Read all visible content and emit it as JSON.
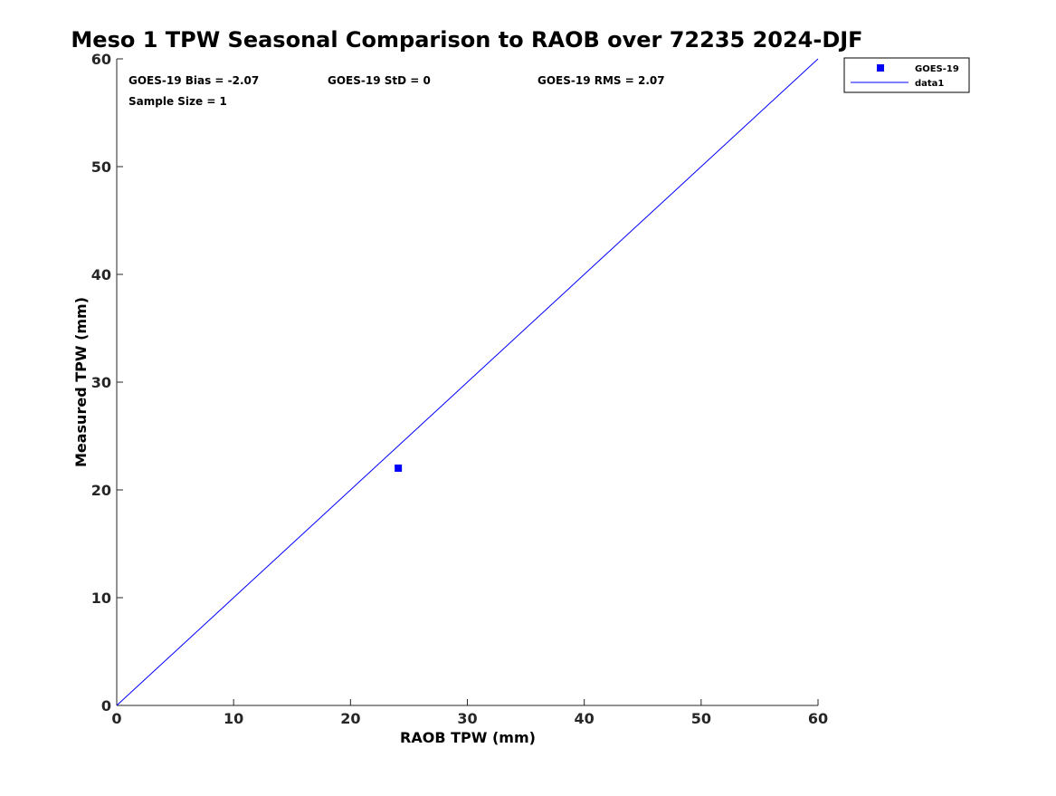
{
  "chart_data": {
    "type": "scatter",
    "title": "Meso 1 TPW Seasonal Comparison to RAOB over 72235 2024-DJF",
    "xlabel": "RAOB TPW (mm)",
    "ylabel": "Measured TPW (mm)",
    "xlim": [
      0,
      60
    ],
    "ylim": [
      0,
      60
    ],
    "xticks": [
      "0",
      "10",
      "20",
      "30",
      "40",
      "50",
      "60"
    ],
    "yticks": [
      "0",
      "10",
      "20",
      "30",
      "40",
      "50",
      "60"
    ],
    "grid": false,
    "legend_position": "outside-top-right",
    "series": [
      {
        "name": "GOES-19",
        "kind": "scatter",
        "marker": "square",
        "color": "#0000ff",
        "points": [
          [
            24.09,
            22.02
          ]
        ]
      },
      {
        "name": "data1",
        "kind": "line",
        "color": "#0000ff",
        "points": [
          [
            0,
            0
          ],
          [
            60,
            60
          ]
        ]
      }
    ],
    "annotations": [
      "GOES-19 Bias = -2.07",
      "GOES-19 StD = 0",
      "GOES-19 RMS = 2.07",
      "Sample Size = 1"
    ]
  }
}
